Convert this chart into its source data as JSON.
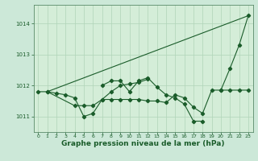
{
  "bg_color": "#cce8d8",
  "plot_bg_color": "#d4edd8",
  "grid_color": "#b0d4b8",
  "line_color": "#1a5c2a",
  "marker_color": "#1a5c2a",
  "xlabel": "Graphe pression niveau de la mer (hPa)",
  "xlabel_fontsize": 6.5,
  "xlim": [
    -0.5,
    23.5
  ],
  "ylim": [
    1010.5,
    1014.6
  ],
  "yticks": [
    1011,
    1012,
    1013,
    1014
  ],
  "xticks": [
    0,
    1,
    2,
    3,
    4,
    5,
    6,
    7,
    8,
    9,
    10,
    11,
    12,
    13,
    14,
    15,
    16,
    17,
    18,
    19,
    20,
    21,
    22,
    23
  ],
  "line_straight": [
    [
      1,
      1011.8
    ],
    [
      23,
      1014.25
    ]
  ],
  "line1_x": [
    1,
    2,
    3,
    4,
    5,
    6,
    7,
    8,
    9,
    10,
    11,
    12,
    13,
    14,
    15,
    16,
    17,
    18,
    19,
    20,
    21,
    22,
    23
  ],
  "line1_y": [
    1011.8,
    1011.75,
    1011.7,
    1011.6,
    1011.0,
    1011.1,
    1011.55,
    1011.55,
    1011.55,
    1011.55,
    1011.55,
    1011.5,
    1011.5,
    1011.45,
    1011.7,
    1011.6,
    1011.3,
    1011.1,
    1011.85,
    1011.85,
    1011.85,
    1011.85,
    1011.85
  ],
  "line2_x": [
    7,
    8,
    9,
    10,
    11,
    12,
    13,
    14,
    15,
    16,
    17,
    18
  ],
  "line2_y": [
    1012.0,
    1012.15,
    1012.15,
    1011.8,
    1012.15,
    1012.25,
    1011.95,
    1011.7,
    1011.6,
    1011.4,
    1010.85,
    1010.85
  ],
  "line3_x": [
    0,
    1,
    4,
    5,
    6,
    7,
    8,
    9,
    10,
    11,
    12
  ],
  "line3_y": [
    1011.8,
    1011.8,
    1011.35,
    1011.35,
    1011.35,
    1011.55,
    1011.8,
    1012.0,
    1012.05,
    1012.1,
    1012.2
  ],
  "line4_x": [
    20,
    21,
    22,
    23
  ],
  "line4_y": [
    1011.85,
    1012.55,
    1013.3,
    1014.25
  ]
}
